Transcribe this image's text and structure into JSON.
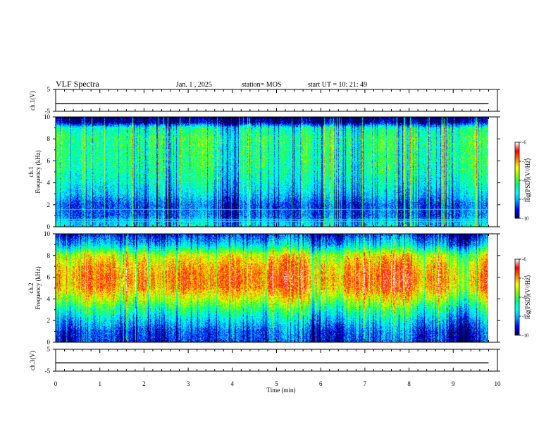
{
  "header": {
    "title": "VLF Spectra",
    "date": "Jan. 1 , 2025",
    "station": "station= MOS",
    "start": "start UT =  10: 21: 49"
  },
  "colors": {
    "colormap": [
      "#00005a",
      "#0000ff",
      "#00a0ff",
      "#00ffff",
      "#00ff80",
      "#7fff00",
      "#ffff00",
      "#ff8000",
      "#ff0000",
      "#ffffff"
    ],
    "trace": "#000000",
    "frame": "#000000"
  },
  "chart_data": [
    {
      "type": "line",
      "panel": "ch1-waveform",
      "ylabel": "ch.1(V)",
      "ylim": [
        -5,
        5
      ],
      "yticks": [
        "5",
        "-5"
      ],
      "xlim": [
        0,
        10
      ],
      "series": [
        {
          "x": [
            0,
            9.8
          ],
          "y": [
            -1.5,
            -1.5
          ]
        }
      ]
    },
    {
      "type": "heatmap",
      "panel": "ch1-spectrogram",
      "ylabel_line1": "ch.1",
      "ylabel_line2": "Frequency (kHz)",
      "ylim": [
        0,
        10
      ],
      "yticks": [
        "0",
        "2",
        "4",
        "6",
        "8",
        "10"
      ],
      "xlim": [
        0,
        9.8
      ],
      "colorbar": {
        "label": "log(PSD)(V²/Hz)",
        "range": [
          -10,
          -6
        ],
        "ticks": [
          "-6",
          "-7",
          "-8",
          "-9",
          "-10"
        ]
      },
      "profile": {
        "freq_khz": [
          0,
          1,
          2,
          3,
          4,
          5,
          6,
          7,
          8,
          9,
          9.5,
          10
        ],
        "log_psd": [
          -8.6,
          -9.2,
          -9.3,
          -8.8,
          -8.5,
          -8.3,
          -8.2,
          -8.2,
          -8.1,
          -8.4,
          -9.8,
          -10
        ]
      },
      "lines_khz": [
        0.5,
        0.7,
        1.6
      ]
    },
    {
      "type": "heatmap",
      "panel": "ch2-spectrogram",
      "ylabel_line1": "ch.2",
      "ylabel_line2": "Frequency (kHz)",
      "ylim": [
        0,
        10
      ],
      "yticks": [
        "0",
        "2",
        "4",
        "6",
        "8",
        "10"
      ],
      "xlim": [
        0,
        9.8
      ],
      "colorbar": {
        "label": "log(PSD)(V²/Hz)",
        "range": [
          -10,
          -6
        ],
        "ticks": [
          "-6",
          "-7",
          "-8",
          "-9",
          "-10"
        ]
      },
      "profile": {
        "freq_khz": [
          0,
          1,
          2,
          3,
          4,
          5,
          6,
          7,
          8,
          9,
          10
        ],
        "log_psd": [
          -9.4,
          -9.3,
          -8.8,
          -8.2,
          -7.5,
          -6.9,
          -6.8,
          -7.0,
          -7.4,
          -8.8,
          -9.5
        ]
      }
    },
    {
      "type": "line",
      "panel": "ch3-waveform",
      "ylabel": "ch.3(V)",
      "ylim": [
        -5,
        5
      ],
      "yticks": [
        "5",
        "-5"
      ],
      "xlim": [
        0,
        10
      ],
      "series": [
        {
          "x": [
            0,
            9.8
          ],
          "y": [
            -1.2,
            -1.2
          ]
        }
      ]
    }
  ],
  "xaxis": {
    "label": "Time (min)",
    "ticks": [
      "0",
      "1",
      "2",
      "3",
      "4",
      "5",
      "6",
      "7",
      "8",
      "9",
      "10"
    ]
  }
}
